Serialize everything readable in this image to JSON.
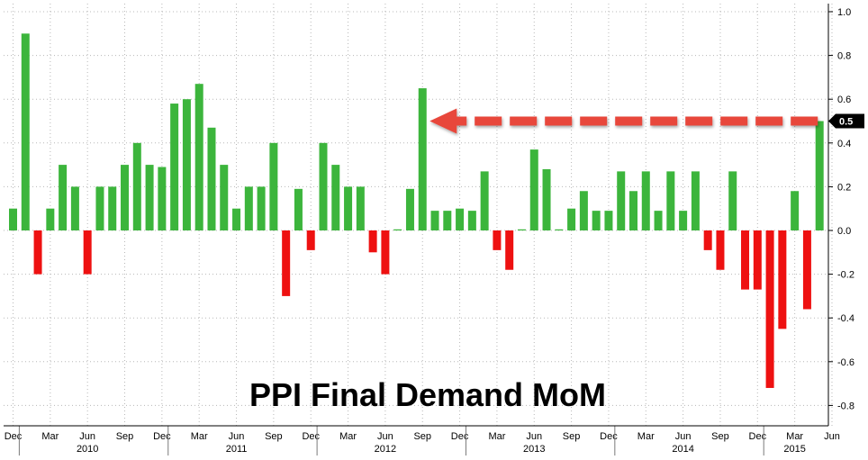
{
  "chart_data": {
    "type": "bar",
    "title": "PPI Final Demand MoM",
    "xlabel": "",
    "ylabel": "",
    "ylim": [
      -0.85,
      1.05
    ],
    "y_ticks": [
      "1.0",
      "0.8",
      "0.6",
      "0.4",
      "0.2",
      "0.0",
      "-0.2",
      "-0.4",
      "-0.6",
      "-0.8"
    ],
    "y_tick_values": [
      1.0,
      0.8,
      0.6,
      0.4,
      0.2,
      0.0,
      -0.2,
      -0.4,
      -0.6,
      -0.8
    ],
    "last_value_label": "0.5",
    "last_value": 0.5,
    "grid": true,
    "positive_color": "#3cb53c",
    "negative_color": "#ee1111",
    "arrow_color": "#e8463a",
    "first_month": "Dec 2009",
    "values": [
      0.1,
      0.9,
      -0.2,
      0.1,
      0.3,
      0.2,
      -0.2,
      0.2,
      0.2,
      0.3,
      0.4,
      0.3,
      0.29,
      0.58,
      0.6,
      0.67,
      0.47,
      0.3,
      0.1,
      0.2,
      0.2,
      0.4,
      -0.3,
      0.19,
      -0.09,
      0.4,
      0.3,
      0.2,
      0.2,
      -0.1,
      -0.2,
      0.005,
      0.19,
      0.65,
      0.09,
      0.09,
      0.1,
      0.09,
      0.27,
      -0.09,
      -0.18,
      0.005,
      0.37,
      0.28,
      0.005,
      0.1,
      0.18,
      0.09,
      0.09,
      0.27,
      0.18,
      0.27,
      0.09,
      0.27,
      0.09,
      0.27,
      -0.09,
      -0.18,
      0.27,
      -0.27,
      -0.27,
      -0.72,
      -0.45,
      0.18,
      -0.36,
      0.5
    ],
    "month_ticks": [
      "Dec",
      "Mar",
      "Jun",
      "Sep",
      "Dec",
      "Mar",
      "Jun",
      "Sep",
      "Dec",
      "Mar",
      "Jun",
      "Sep",
      "Dec",
      "Mar",
      "Jun",
      "Sep",
      "Dec",
      "Mar",
      "Jun",
      "Sep",
      "Dec",
      "Mar",
      "Jun"
    ],
    "month_tick_index": [
      0,
      3,
      6,
      9,
      12,
      15,
      18,
      21,
      24,
      27,
      30,
      33,
      36,
      39,
      42,
      45,
      48,
      51,
      54,
      57,
      60,
      63,
      66
    ],
    "years": [
      "2010",
      "2011",
      "2012",
      "2013",
      "2014",
      "2015"
    ],
    "year_label_index": [
      6,
      18,
      30,
      42,
      54,
      63
    ]
  }
}
